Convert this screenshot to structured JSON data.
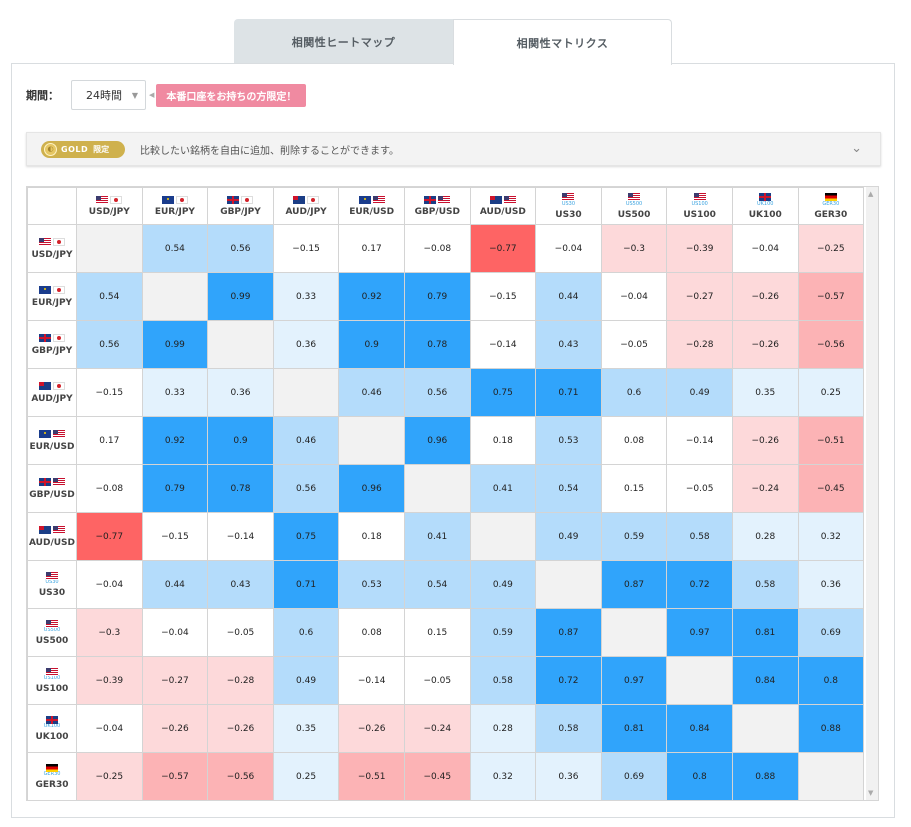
{
  "tabs": [
    {
      "label": "相関性ヒートマップ",
      "active": false
    },
    {
      "label": "相関性マトリクス",
      "active": true
    }
  ],
  "period": {
    "label": "期間：",
    "value": "24時間"
  },
  "notice": "本番口座をお持ちの方限定！",
  "gold": {
    "badge": "GOLD",
    "badge_suffix": "限定",
    "description": "比較したい銘柄を自由に追加、削除することができます。"
  },
  "matrix": {
    "symbols": [
      {
        "name": "USD/JPY",
        "flags": [
          "us",
          "jp"
        ],
        "tag": ""
      },
      {
        "name": "EUR/JPY",
        "flags": [
          "eu",
          "jp"
        ],
        "tag": ""
      },
      {
        "name": "GBP/JPY",
        "flags": [
          "gb",
          "jp"
        ],
        "tag": ""
      },
      {
        "name": "AUD/JPY",
        "flags": [
          "au",
          "jp"
        ],
        "tag": ""
      },
      {
        "name": "EUR/USD",
        "flags": [
          "eu",
          "us"
        ],
        "tag": ""
      },
      {
        "name": "GBP/USD",
        "flags": [
          "gb",
          "us"
        ],
        "tag": ""
      },
      {
        "name": "AUD/USD",
        "flags": [
          "au",
          "us"
        ],
        "tag": ""
      },
      {
        "name": "US30",
        "flags": [
          "us"
        ],
        "tag": "US30"
      },
      {
        "name": "US500",
        "flags": [
          "us"
        ],
        "tag": "US500"
      },
      {
        "name": "US100",
        "flags": [
          "us"
        ],
        "tag": "US100"
      },
      {
        "name": "UK100",
        "flags": [
          "gb"
        ],
        "tag": "UK100"
      },
      {
        "name": "GER30",
        "flags": [
          "de"
        ],
        "tag": "GER30"
      }
    ],
    "values": [
      [
        null,
        "0.54",
        "0.56",
        "-0.15",
        "0.17",
        "-0.08",
        "-0.77",
        "-0.04",
        "-0.3",
        "-0.39",
        "-0.04",
        "-0.25"
      ],
      [
        "0.54",
        null,
        "0.99",
        "0.33",
        "0.92",
        "0.79",
        "-0.15",
        "0.44",
        "-0.04",
        "-0.27",
        "-0.26",
        "-0.57"
      ],
      [
        "0.56",
        "0.99",
        null,
        "0.36",
        "0.9",
        "0.78",
        "-0.14",
        "0.43",
        "-0.05",
        "-0.28",
        "-0.26",
        "-0.56"
      ],
      [
        "-0.15",
        "0.33",
        "0.36",
        null,
        "0.46",
        "0.56",
        "0.75",
        "0.71",
        "0.6",
        "0.49",
        "0.35",
        "0.25"
      ],
      [
        "0.17",
        "0.92",
        "0.9",
        "0.46",
        null,
        "0.96",
        "0.18",
        "0.53",
        "0.08",
        "-0.14",
        "-0.26",
        "-0.51"
      ],
      [
        "-0.08",
        "0.79",
        "0.78",
        "0.56",
        "0.96",
        null,
        "0.41",
        "0.54",
        "0.15",
        "-0.05",
        "-0.24",
        "-0.45"
      ],
      [
        "-0.77",
        "-0.15",
        "-0.14",
        "0.75",
        "0.18",
        "0.41",
        null,
        "0.49",
        "0.59",
        "0.58",
        "0.28",
        "0.32"
      ],
      [
        "-0.04",
        "0.44",
        "0.43",
        "0.71",
        "0.53",
        "0.54",
        "0.49",
        null,
        "0.87",
        "0.72",
        "0.58",
        "0.36"
      ],
      [
        "-0.3",
        "-0.04",
        "-0.05",
        "0.6",
        "0.08",
        "0.15",
        "0.59",
        "0.87",
        null,
        "0.97",
        "0.81",
        "0.69"
      ],
      [
        "-0.39",
        "-0.27",
        "-0.28",
        "0.49",
        "-0.14",
        "-0.05",
        "0.58",
        "0.72",
        "0.97",
        null,
        "0.84",
        "0.8"
      ],
      [
        "-0.04",
        "-0.26",
        "-0.26",
        "0.35",
        "-0.26",
        "-0.24",
        "0.28",
        "0.58",
        "0.81",
        "0.84",
        null,
        "0.88"
      ],
      [
        "-0.25",
        "-0.57",
        "-0.56",
        "0.25",
        "-0.51",
        "-0.45",
        "0.32",
        "0.36",
        "0.69",
        "0.8",
        "0.88",
        null
      ]
    ],
    "colors": {
      "strong_pos": "#30a4fb",
      "mid_pos": "#b4dcfb",
      "weak_pos": "#e3f2fd",
      "neutral": "#ffffff",
      "weak_neg": "#fdd9da",
      "mid_neg": "#fcb3b5",
      "strong_neg": "#fe6464",
      "diagonal": "#f2f2f2"
    }
  }
}
